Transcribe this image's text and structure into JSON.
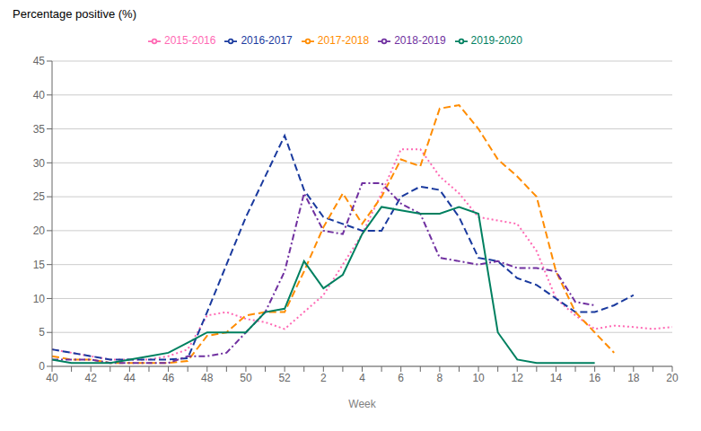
{
  "chart_data": {
    "type": "line",
    "ylabel": "Percentage positive (%)",
    "xlabel": "Week",
    "categories": [
      "40",
      null,
      "42",
      null,
      "44",
      null,
      "46",
      null,
      "48",
      null,
      "50",
      null,
      "52",
      null,
      "2",
      null,
      "4",
      null,
      "6",
      null,
      "8",
      null,
      "10",
      null,
      "12",
      null,
      "14",
      null,
      "16",
      null,
      "18",
      null,
      "20"
    ],
    "ylim": [
      0,
      45
    ],
    "yticks": [
      0,
      5,
      10,
      15,
      20,
      25,
      30,
      35,
      40,
      45
    ],
    "grid": "y",
    "legend": "top",
    "series": [
      {
        "name": "2015-2016",
        "color": "#ff69b4",
        "line_style": "dotted",
        "values": [
          2.5,
          2.0,
          1.5,
          1.0,
          1.0,
          1.0,
          1.5,
          2.5,
          7.5,
          8.0,
          7.0,
          6.5,
          5.5,
          8.0,
          10.5,
          15.0,
          19.5,
          25.5,
          32.0,
          32.0,
          28.0,
          25.5,
          22.0,
          21.5,
          21.0,
          17.0,
          10.0,
          7.5,
          5.5,
          6.0,
          5.8,
          5.5,
          5.8
        ]
      },
      {
        "name": "2016-2017",
        "color": "#1a3a9e",
        "line_style": "dashed",
        "values": [
          2.5,
          2.0,
          1.5,
          1.0,
          1.0,
          1.0,
          1.0,
          1.2,
          8.0,
          15.0,
          22.0,
          28.0,
          34.0,
          26.0,
          22.0,
          21.0,
          20.0,
          20.0,
          25.0,
          26.5,
          26.0,
          22.0,
          16.0,
          15.5,
          13.0,
          12.0,
          10.0,
          8.0,
          8.0,
          9.0,
          10.5,
          null,
          null
        ]
      },
      {
        "name": "2017-2018",
        "color": "#ff8c00",
        "line_style": "dashed",
        "values": [
          1.5,
          1.0,
          1.0,
          0.5,
          0.5,
          0.5,
          0.5,
          0.8,
          4.5,
          5.0,
          7.5,
          8.0,
          8.0,
          14.0,
          20.5,
          25.5,
          21.0,
          25.0,
          30.5,
          29.5,
          38.0,
          38.5,
          35.0,
          30.5,
          28.0,
          25.0,
          14.0,
          8.0,
          5.0,
          2.0,
          null,
          null,
          null
        ]
      },
      {
        "name": "2018-2019",
        "color": "#7030a0",
        "line_style": "dashdot",
        "values": [
          1.0,
          1.0,
          1.0,
          0.5,
          0.5,
          0.5,
          0.5,
          1.5,
          1.5,
          2.0,
          5.0,
          8.0,
          14.0,
          25.5,
          20.0,
          19.5,
          27.0,
          27.0,
          24.0,
          22.5,
          16.0,
          15.5,
          15.0,
          15.5,
          14.5,
          14.5,
          14.0,
          9.5,
          9.0,
          null,
          null,
          null,
          null
        ]
      },
      {
        "name": "2019-2020",
        "color": "#008060",
        "line_style": "solid",
        "values": [
          1.0,
          0.5,
          0.5,
          0.5,
          1.0,
          1.5,
          2.0,
          3.5,
          5.0,
          5.0,
          5.0,
          8.0,
          8.5,
          15.5,
          11.5,
          13.5,
          19.5,
          23.5,
          23.0,
          22.5,
          22.5,
          23.5,
          22.5,
          5.0,
          1.0,
          0.5,
          0.5,
          0.5,
          0.5,
          null,
          null,
          null,
          null
        ]
      }
    ]
  }
}
